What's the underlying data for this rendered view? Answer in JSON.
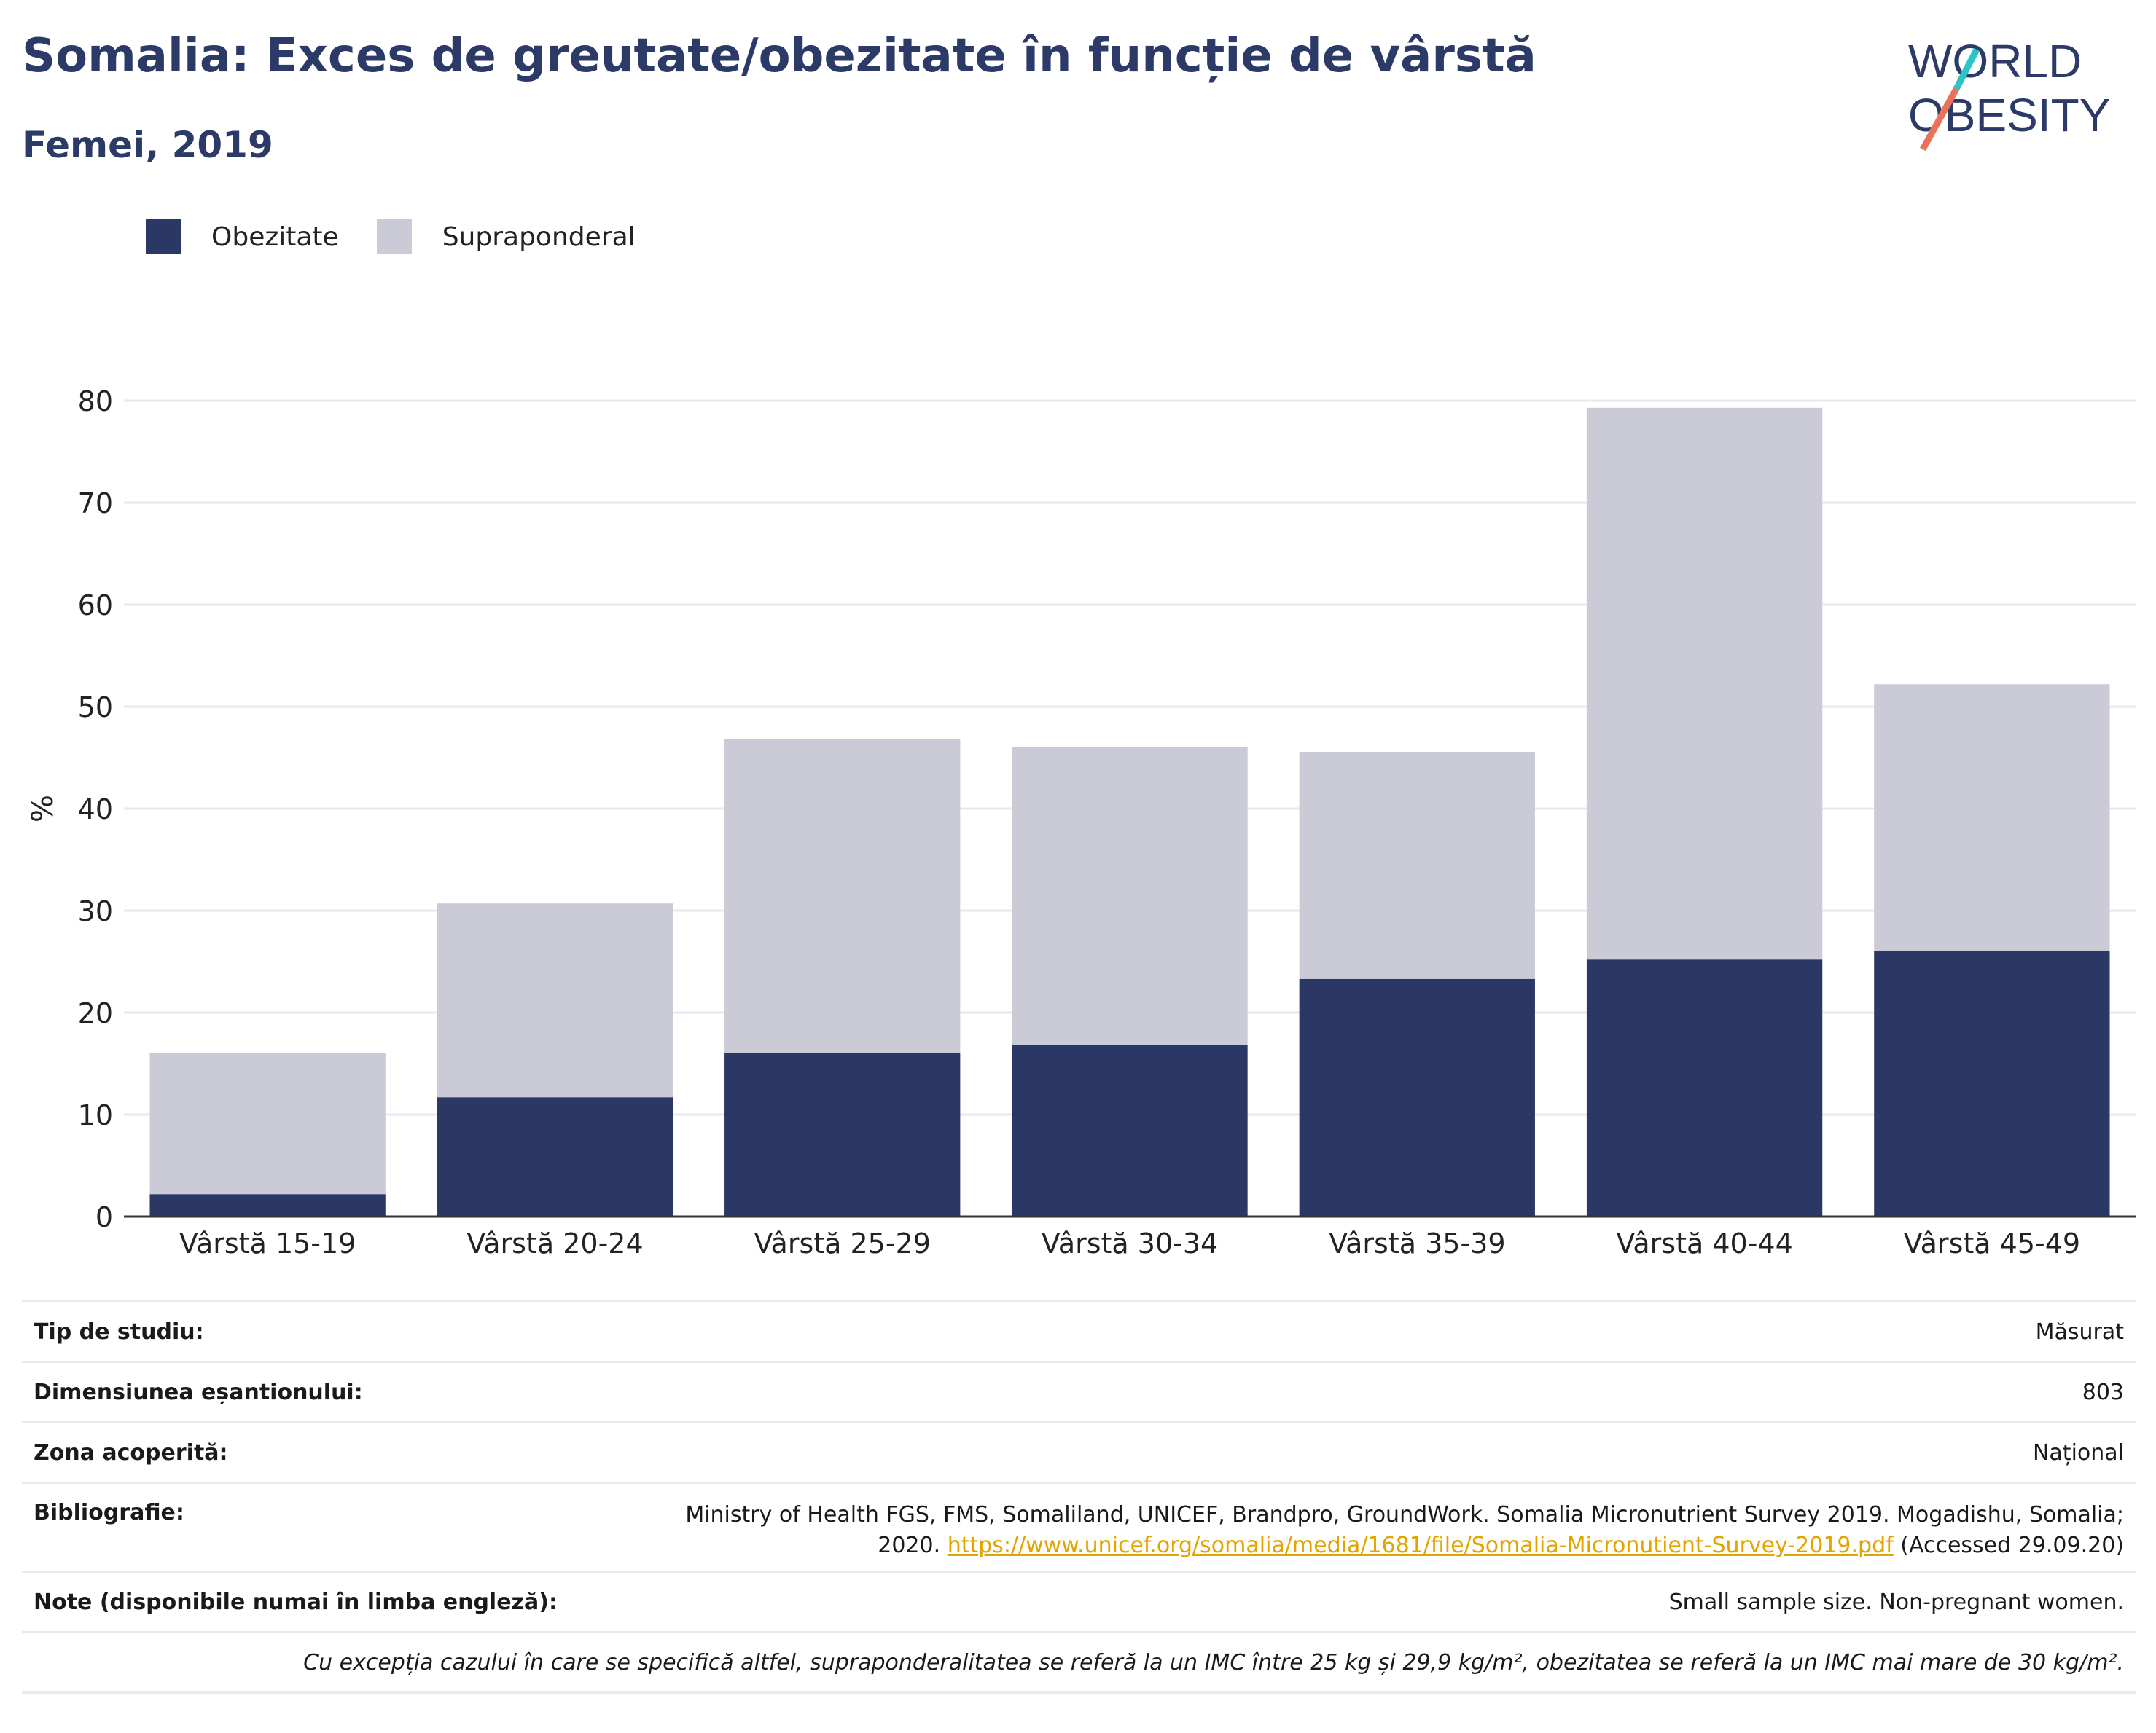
{
  "header": {
    "title": "Somalia: Exces de greutate/obezitate în funcție de vârstă",
    "subtitle": "Femei, 2019"
  },
  "logo": {
    "line1": "WORLD",
    "line2": "OBESITY",
    "accent_teal": "#2ec4c6",
    "accent_red": "#e8735a"
  },
  "colors": {
    "obesity": "#2b3764",
    "overweight": "#cacbd7",
    "text": "#2b3a67",
    "link": "#e4a400"
  },
  "legend": [
    {
      "label": "Obezitate",
      "color": "#2b3764"
    },
    {
      "label": "Supraponderal",
      "color": "#cacbd7"
    }
  ],
  "chart_data": {
    "type": "bar",
    "stacked": true,
    "categories": [
      "Vârstă 15-19",
      "Vârstă 20-24",
      "Vârstă 25-29",
      "Vârstă 30-34",
      "Vârstă 35-39",
      "Vârstă 40-44",
      "Vârstă 45-49"
    ],
    "series": [
      {
        "name": "Obezitate",
        "values": [
          2.2,
          11.7,
          16.0,
          16.8,
          23.3,
          25.2,
          26.0
        ]
      },
      {
        "name": "Supraponderal",
        "values": [
          13.8,
          19.0,
          30.8,
          29.2,
          22.2,
          54.1,
          26.2
        ]
      }
    ],
    "title": "Somalia: Exces de greutate/obezitate în funcție de vârstă",
    "subtitle": "Femei, 2019",
    "xlabel": "",
    "ylabel": "%",
    "ylim": [
      0,
      80
    ],
    "yticks": [
      "0",
      "10",
      "20",
      "30",
      "40",
      "50",
      "60",
      "70",
      "80"
    ],
    "grid": true,
    "legend_position": "top-left"
  },
  "info": {
    "study_type": {
      "label": "Tip de studiu:",
      "value": "Măsurat"
    },
    "sample_size": {
      "label": "Dimensiunea eșantionului:",
      "value": "803"
    },
    "coverage": {
      "label": "Zona acoperită:",
      "value": "Național"
    },
    "bibliography": {
      "label": "Bibliografie:",
      "text1": "Ministry of Health FGS, FMS, Somaliland, UNICEF, Brandpro, GroundWork. Somalia Micronutrient Survey 2019. Mogadishu, Somalia;",
      "text2": "2020.",
      "link": "https://www.unicef.org/somalia/media/1681/file/Somalia-Micronutient-Survey-2019.pdf",
      "text3": "(Accessed 29.09.20)"
    },
    "notes": {
      "label": "Note (disponibile numai în limba engleză):",
      "value": "Small sample size. Non-pregnant women."
    },
    "footnote": "Cu excepția cazului în care se specifică altfel, supraponderalitatea se referă la un IMC între 25 kg și 29,9 kg/m², obezitatea se referă la un IMC mai mare de 30 kg/m²."
  }
}
